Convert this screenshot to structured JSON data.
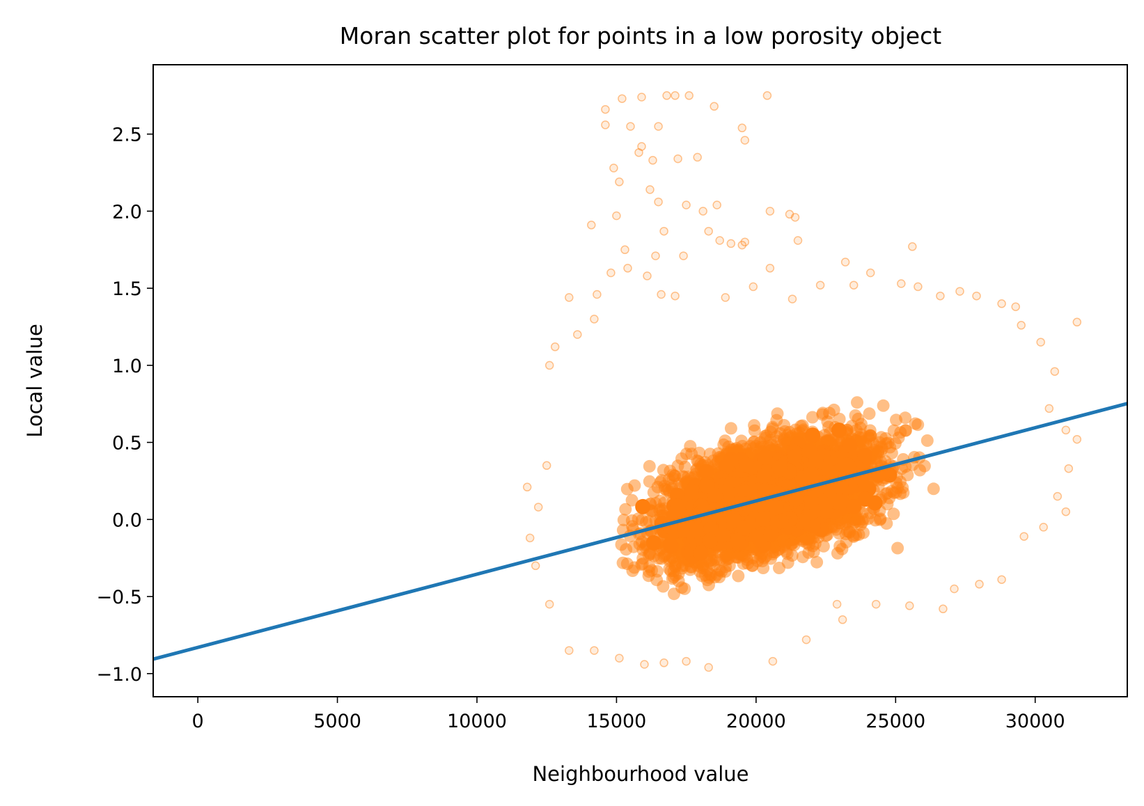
{
  "chart_data": {
    "type": "scatter",
    "title": "Moran scatter plot for points in a low porosity object",
    "xlabel": "Neighbourhood value",
    "ylabel": "Local value",
    "xlim": [
      -1600,
      33300
    ],
    "ylim": [
      -1.15,
      2.95
    ],
    "xticks": [
      0,
      5000,
      10000,
      15000,
      20000,
      25000,
      30000
    ],
    "xtick_labels": [
      "0",
      "5000",
      "10000",
      "15000",
      "20000",
      "25000",
      "30000"
    ],
    "yticks": [
      -1.0,
      -0.5,
      0.0,
      0.5,
      1.0,
      1.5,
      2.0,
      2.5
    ],
    "ytick_labels": [
      "−1.0",
      "−0.5",
      "0.0",
      "0.5",
      "1.0",
      "1.5",
      "2.0",
      "2.5"
    ],
    "grid": false,
    "series": [
      {
        "kind": "scatter",
        "color": "#ff7f0e",
        "alpha": 0.15,
        "dense_region": {
          "x_range": [
            12500,
            30500
          ],
          "y_range": [
            -0.85,
            1.1
          ],
          "trend_slope": 4.75e-05,
          "trend_intercept": -0.83
        },
        "points": [
          [
            14600,
            2.66
          ],
          [
            15200,
            2.73
          ],
          [
            15900,
            2.74
          ],
          [
            16800,
            2.75
          ],
          [
            17100,
            2.75
          ],
          [
            17600,
            2.75
          ],
          [
            20400,
            2.75
          ],
          [
            18500,
            2.68
          ],
          [
            14600,
            2.56
          ],
          [
            15500,
            2.55
          ],
          [
            16500,
            2.55
          ],
          [
            19500,
            2.54
          ],
          [
            19600,
            2.46
          ],
          [
            15800,
            2.38
          ],
          [
            15900,
            2.42
          ],
          [
            16300,
            2.33
          ],
          [
            17200,
            2.34
          ],
          [
            17900,
            2.35
          ],
          [
            14900,
            2.28
          ],
          [
            15100,
            2.19
          ],
          [
            16200,
            2.14
          ],
          [
            16500,
            2.06
          ],
          [
            17500,
            2.04
          ],
          [
            18100,
            2.0
          ],
          [
            18600,
            2.04
          ],
          [
            20500,
            2.0
          ],
          [
            21200,
            1.98
          ],
          [
            21400,
            1.96
          ],
          [
            14100,
            1.91
          ],
          [
            15000,
            1.97
          ],
          [
            16700,
            1.87
          ],
          [
            18300,
            1.87
          ],
          [
            19100,
            1.79
          ],
          [
            19500,
            1.78
          ],
          [
            21500,
            1.81
          ],
          [
            15300,
            1.75
          ],
          [
            16400,
            1.71
          ],
          [
            17400,
            1.71
          ],
          [
            18700,
            1.81
          ],
          [
            19600,
            1.8
          ],
          [
            25600,
            1.77
          ],
          [
            14800,
            1.6
          ],
          [
            15400,
            1.63
          ],
          [
            16100,
            1.58
          ],
          [
            20500,
            1.63
          ],
          [
            23200,
            1.67
          ],
          [
            24100,
            1.6
          ],
          [
            22300,
            1.52
          ],
          [
            23500,
            1.52
          ],
          [
            25200,
            1.53
          ],
          [
            25800,
            1.51
          ],
          [
            26600,
            1.45
          ],
          [
            27300,
            1.48
          ],
          [
            27900,
            1.45
          ],
          [
            13300,
            1.44
          ],
          [
            14300,
            1.46
          ],
          [
            16600,
            1.46
          ],
          [
            17100,
            1.45
          ],
          [
            18900,
            1.44
          ],
          [
            19900,
            1.51
          ],
          [
            21300,
            1.43
          ],
          [
            28800,
            1.4
          ],
          [
            29300,
            1.38
          ],
          [
            12800,
            1.12
          ],
          [
            12600,
            1.0
          ],
          [
            13600,
            1.2
          ],
          [
            14200,
            1.3
          ],
          [
            29500,
            1.26
          ],
          [
            30200,
            1.15
          ],
          [
            31500,
            1.28
          ],
          [
            30700,
            0.96
          ],
          [
            30500,
            0.72
          ],
          [
            31100,
            0.58
          ],
          [
            31500,
            0.52
          ],
          [
            31200,
            0.33
          ],
          [
            30800,
            0.15
          ],
          [
            31100,
            0.05
          ],
          [
            30300,
            -0.05
          ],
          [
            29600,
            -0.11
          ],
          [
            28800,
            -0.39
          ],
          [
            28000,
            -0.42
          ],
          [
            27100,
            -0.45
          ],
          [
            26700,
            -0.58
          ],
          [
            25500,
            -0.56
          ],
          [
            24300,
            -0.55
          ],
          [
            22900,
            -0.55
          ],
          [
            20600,
            -0.92
          ],
          [
            18300,
            -0.96
          ],
          [
            17500,
            -0.92
          ],
          [
            16700,
            -0.93
          ],
          [
            16000,
            -0.94
          ],
          [
            15100,
            -0.9
          ],
          [
            14200,
            -0.85
          ],
          [
            13300,
            -0.85
          ],
          [
            12600,
            -0.55
          ],
          [
            12100,
            -0.3
          ],
          [
            11900,
            -0.12
          ],
          [
            12200,
            0.08
          ],
          [
            11800,
            0.21
          ],
          [
            12500,
            0.35
          ],
          [
            21800,
            -0.78
          ],
          [
            23100,
            -0.65
          ]
        ]
      },
      {
        "kind": "line",
        "color": "#1f77b4",
        "x": [
          -1600,
          33300
        ],
        "y": [
          -0.906,
          0.752
        ]
      }
    ]
  }
}
